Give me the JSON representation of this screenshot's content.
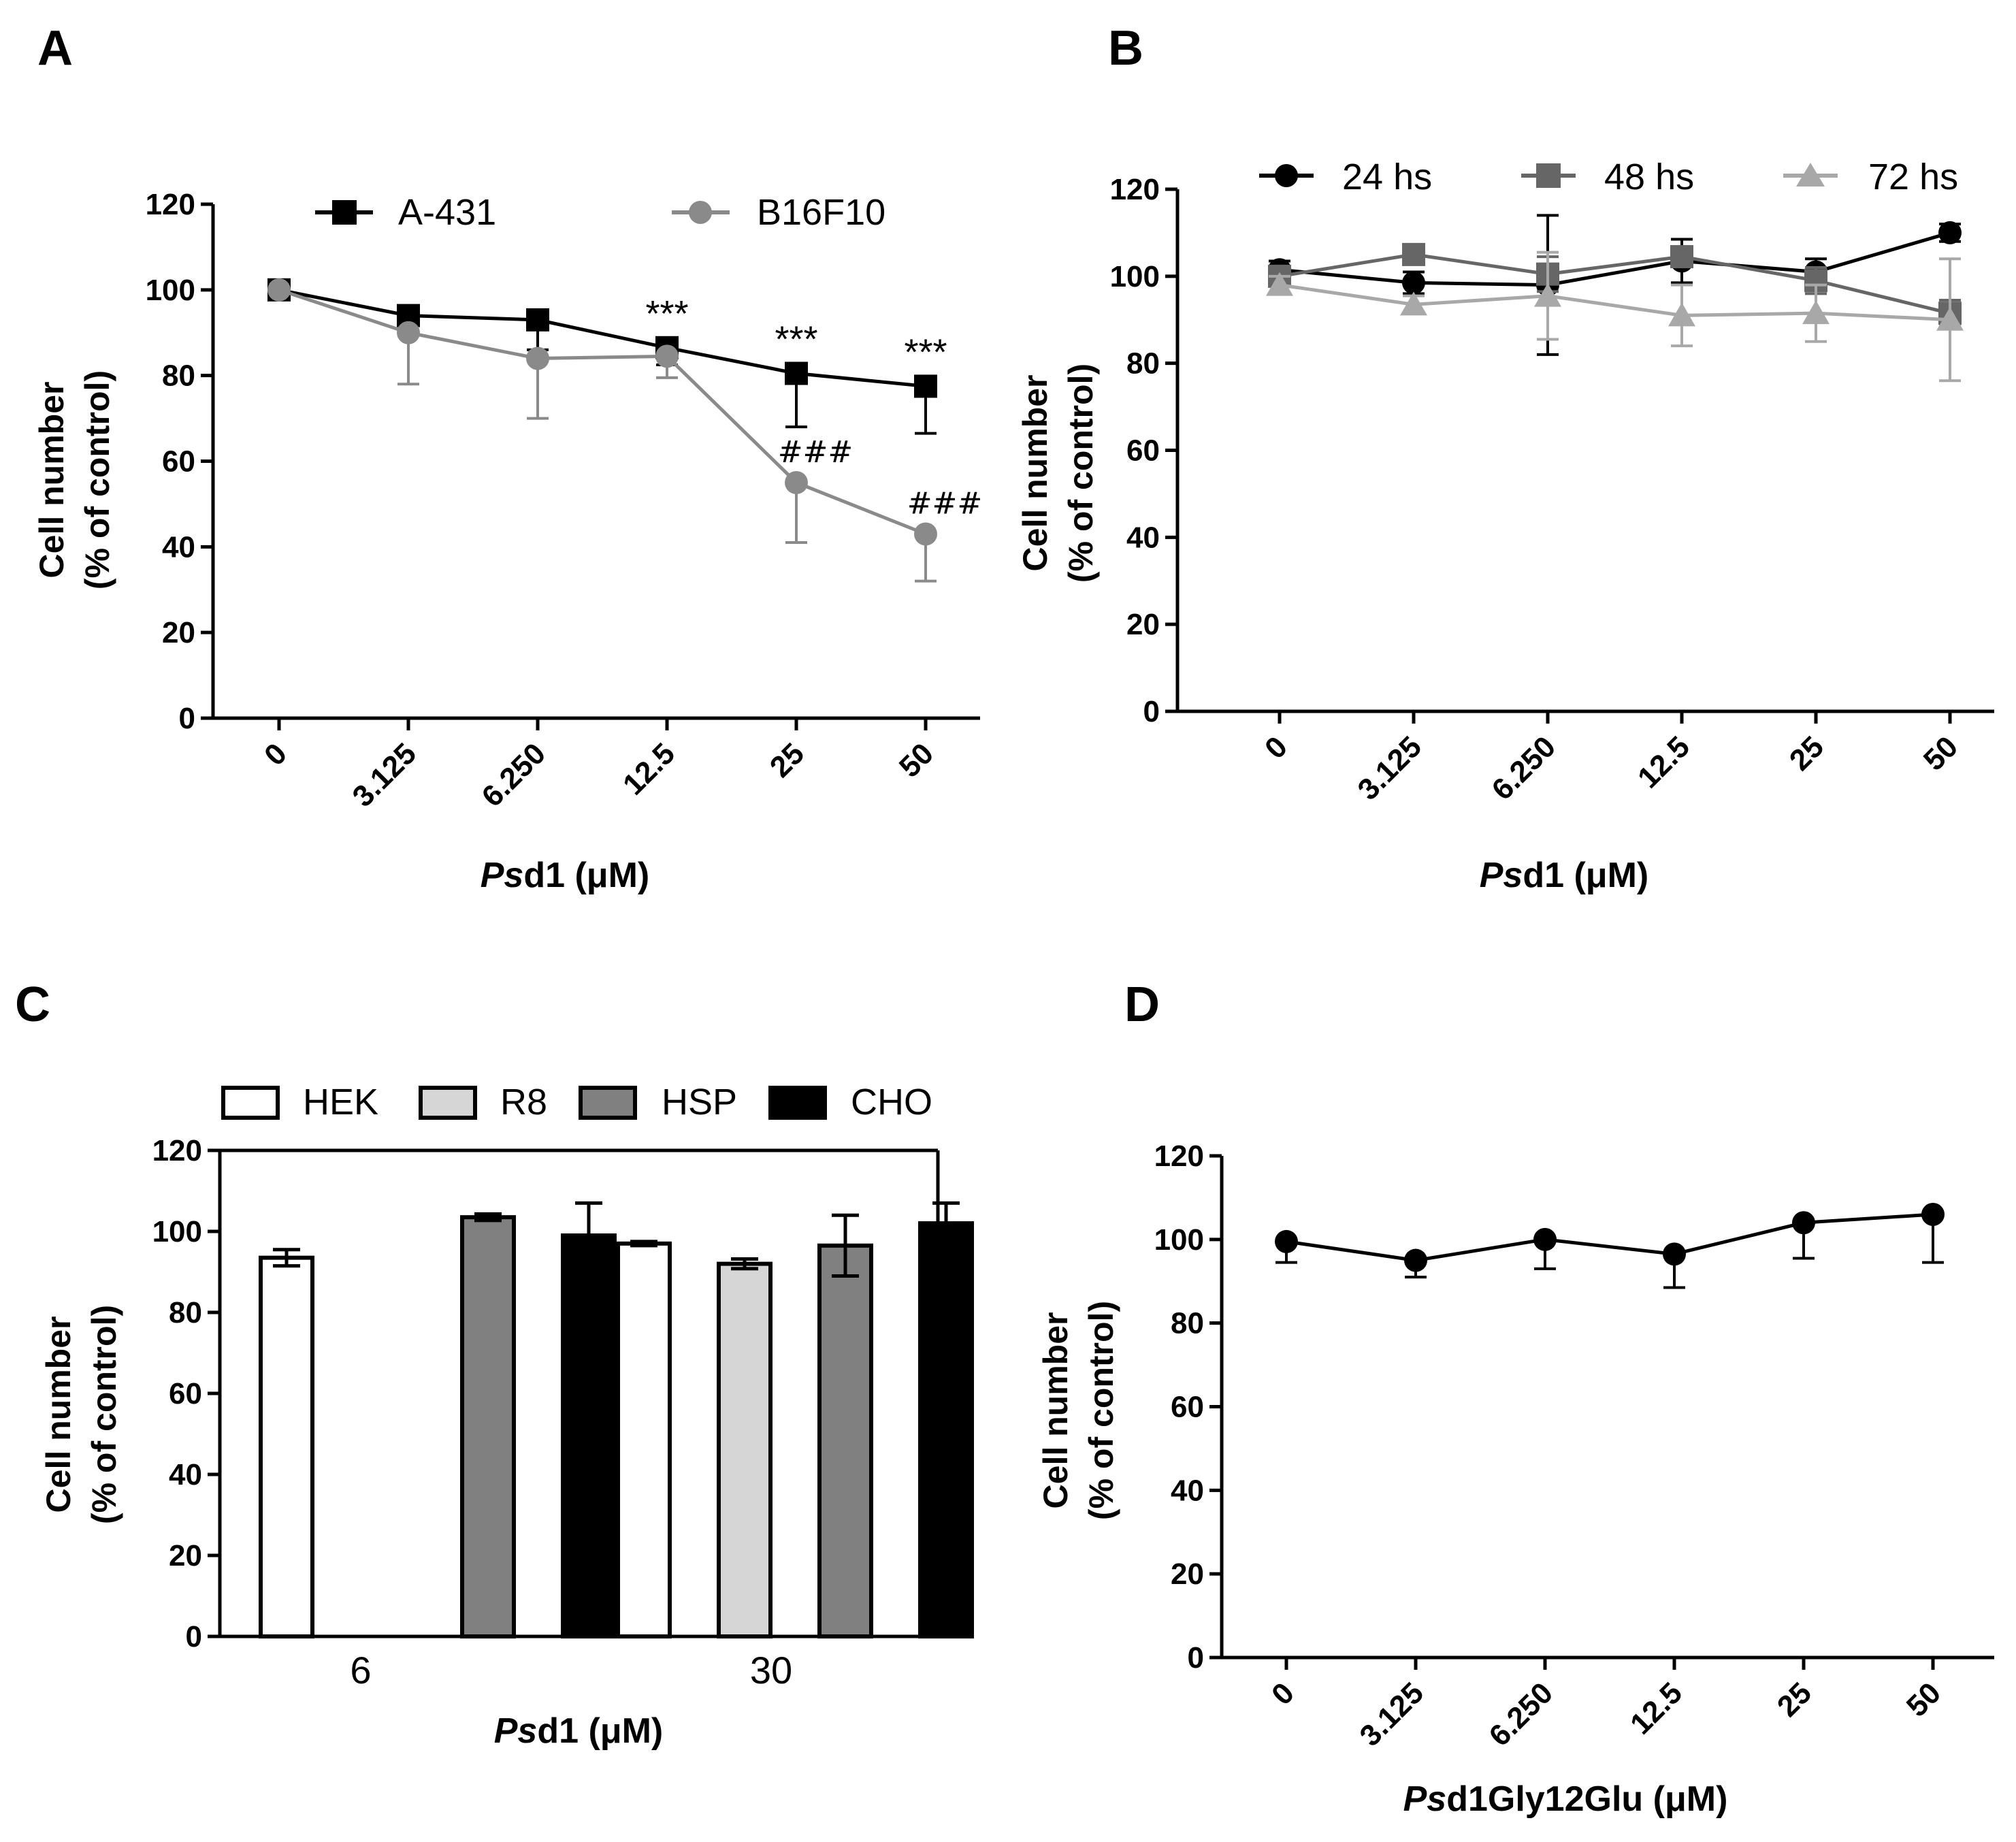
{
  "panels": [
    {
      "letter": "A",
      "chart_data": {
        "type": "line",
        "categories": [
          "0",
          "3.125",
          "6.250",
          "12.5",
          "25",
          "50"
        ],
        "ylabel_line1": "Cell number",
        "ylabel_line2": "(% of control)",
        "xlabel_italic": "Ps",
        "xlabel_rest": "d1 (μM)",
        "ylim": [
          0,
          120
        ],
        "yticks": [
          "0",
          "20",
          "40",
          "60",
          "80",
          "100",
          "120"
        ],
        "series": [
          {
            "name": "A-431",
            "color": "#000000",
            "marker": "square",
            "values": [
              100,
              94,
              93,
              86.5,
              80.5,
              77.5
            ],
            "err_up": [
              0,
              0,
              0,
              0,
              0,
              0
            ],
            "err_down": [
              0,
              0,
              7,
              4,
              12.5,
              11
            ],
            "annotations": [
              "",
              "",
              "",
              "***",
              "***",
              "***"
            ]
          },
          {
            "name": "B16F10",
            "color": "#8a8a8a",
            "marker": "circle",
            "values": [
              100,
              90,
              84,
              84.5,
              55,
              43
            ],
            "err_up": [
              0,
              0,
              0,
              0,
              0,
              0
            ],
            "err_down": [
              0,
              12,
              14,
              5,
              14,
              11
            ],
            "annotations": [
              "",
              "",
              "",
              "",
              "###",
              "###"
            ]
          }
        ]
      }
    },
    {
      "letter": "B",
      "chart_data": {
        "type": "line",
        "categories": [
          "0",
          "3.125",
          "6.250",
          "12.5",
          "25",
          "50"
        ],
        "ylabel_line1": "Cell number",
        "ylabel_line2": "(% of control)",
        "xlabel_italic": "Ps",
        "xlabel_rest": "d1 (μM)",
        "ylim": [
          0,
          120
        ],
        "yticks": [
          "0",
          "20",
          "40",
          "60",
          "80",
          "100",
          "120"
        ],
        "series": [
          {
            "name": "24 hs",
            "color": "#000000",
            "marker": "circle",
            "values": [
              101.5,
              98.5,
              98,
              103.5,
              101,
              110
            ],
            "err": [
              2,
              2.5,
              16,
              5,
              3,
              2
            ]
          },
          {
            "name": "48 hs",
            "color": "#666666",
            "marker": "square",
            "values": [
              100,
              105,
              100.5,
              104.5,
              99,
              91.5
            ],
            "err": [
              2,
              2,
              4,
              2,
              3,
              3
            ]
          },
          {
            "name": "72 hs",
            "color": "#a8a8a8",
            "marker": "triangle",
            "values": [
              98,
              93.5,
              95.5,
              91,
              91.5,
              90
            ],
            "err": [
              2,
              2,
              10,
              7,
              6.5,
              14
            ]
          }
        ]
      }
    },
    {
      "letter": "C",
      "chart_data": {
        "type": "bar",
        "categories": [
          "6",
          "30"
        ],
        "ylabel_line1": "Cell number",
        "ylabel_line2": "(% of control)",
        "xlabel_italic": "Ps",
        "xlabel_rest": "d1 (μM)",
        "ylim": [
          0,
          120
        ],
        "yticks": [
          "0",
          "20",
          "40",
          "60",
          "80",
          "100",
          "120"
        ],
        "series": [
          {
            "name": "HEK",
            "fill": "#ffffff",
            "values": [
              93.5,
              97
            ],
            "err": [
              2,
              0.5
            ]
          },
          {
            "name": "R8",
            "fill": "#d6d6d6",
            "values": [
              null,
              92
            ],
            "err": [
              0,
              1.2
            ]
          },
          {
            "name": "HSP",
            "fill": "#808080",
            "values": [
              103.5,
              96.5
            ],
            "err": [
              0.8,
              7.5
            ]
          },
          {
            "name": "CHO",
            "fill": "#000000",
            "values": [
              99,
              102
            ],
            "err": [
              8,
              5
            ]
          }
        ]
      }
    },
    {
      "letter": "D",
      "chart_data": {
        "type": "line",
        "categories": [
          "0",
          "3.125",
          "6.250",
          "12.5",
          "25",
          "50"
        ],
        "ylabel_line1": "Cell number",
        "ylabel_line2": "(% of control)",
        "xlabel_italic": "Ps",
        "xlabel_rest": "d1Gly12Glu (μM)",
        "ylim": [
          0,
          120
        ],
        "yticks": [
          "0",
          "20",
          "40",
          "60",
          "80",
          "100",
          "120"
        ],
        "series": [
          {
            "name": "Psd1Gly12Glu",
            "color": "#000000",
            "marker": "circle",
            "values": [
              99.5,
              95,
              100,
              96.5,
              104,
              106
            ],
            "err_up": [
              0,
              0,
              0,
              0,
              0,
              0
            ],
            "err_down": [
              5,
              4,
              7,
              8,
              8.5,
              11.5
            ]
          }
        ]
      }
    }
  ]
}
